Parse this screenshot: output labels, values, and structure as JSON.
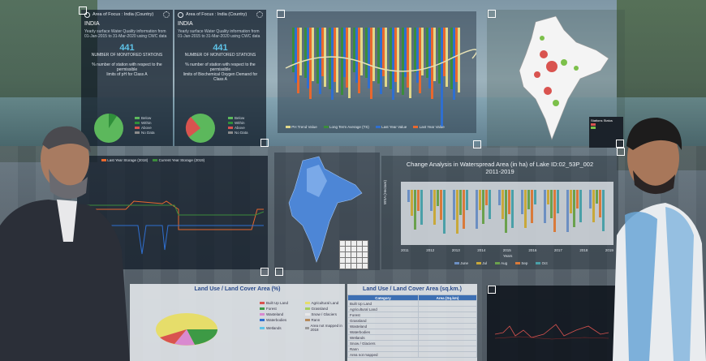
{
  "panel_left": {
    "header": "Area of Focus : India (Country)",
    "country": "INDIA",
    "summary": [
      "Yearly surface Water Quality information from",
      "01-Jan-2015 to 31-Mar-2020 using CWC data"
    ],
    "stat_value": "441",
    "stat_label": "NUMBER OF MONITORED STATIONS",
    "pie_title": [
      "% number of station with respect to the permissible",
      "limits of pH for Class A"
    ],
    "legend": [
      {
        "label": "Below",
        "color": "#5cb85c"
      },
      {
        "label": "Within",
        "color": "#2f8f3a"
      },
      {
        "label": "Above",
        "color": "#d9534f"
      },
      {
        "label": "No Data",
        "color": "#8a8a8a"
      }
    ]
  },
  "panel_mid": {
    "header": "Area of Focus : India (Country)",
    "country": "INDIA",
    "summary": [
      "Yearly surface Water Quality information from",
      "01-Jan-2015 to 31-Mar-2020 using CWC data"
    ],
    "stat_value": "441",
    "stat_label": "NUMBER OF MONITORED STATIONS",
    "pie_title": [
      "% number of station with respect to the permissible",
      "limits of Biochemical Oxygen Demand for Class A"
    ],
    "legend": [
      {
        "label": "Below",
        "color": "#5cb85c"
      },
      {
        "label": "Within",
        "color": "#2f8f3a"
      },
      {
        "label": "Above",
        "color": "#d9534f"
      },
      {
        "label": "No Data",
        "color": "#8a8a8a"
      }
    ]
  },
  "bars_panel": {
    "legend": [
      "PH Trend Value",
      "Long Term Average (TS)",
      "Last Year Value",
      "Last Year Value"
    ]
  },
  "line_panel": {
    "legend": [
      "Last Year Storage (2018)",
      "Current Year Storage (2019)"
    ]
  },
  "waterspread_panel": {
    "title": "Change Analysis in Waterspread Area (in ha) of Lake ID:02_53P_002",
    "subtitle": "2011-2019",
    "ylabel": "WSA (Hectare)",
    "xlabel": "Years",
    "years": [
      "2011",
      "2012",
      "2013",
      "2014",
      "2015",
      "2016",
      "2017",
      "2018",
      "2019"
    ],
    "legend": [
      "June",
      "Jul",
      "Aug",
      "Sep",
      "Oct"
    ]
  },
  "landuse_pie": {
    "title": "Land Use / Land Cover Area (%)",
    "legend": [
      "Built Up Land",
      "Agricultural Land",
      "Forest",
      "Grassland",
      "Wasteland",
      "Snow / Glaciers",
      "Waterbodies",
      "Rann",
      "Wetlands",
      "Area not mapped in 2018"
    ]
  },
  "landuse_table": {
    "title": "Land Use / Land Cover Area (sq.km.)",
    "headers": [
      "Category",
      "Area (Sq.km)"
    ],
    "rows": [
      [
        "Built Up Land",
        ""
      ],
      [
        "Agricultural Land",
        ""
      ],
      [
        "Forest",
        ""
      ],
      [
        "Grassland",
        ""
      ],
      [
        "Wasteland",
        ""
      ],
      [
        "Waterbodies",
        ""
      ],
      [
        "Wetlands",
        ""
      ],
      [
        "Snow / Glaciers",
        ""
      ],
      [
        "Rann",
        ""
      ],
      [
        "Area not mapped",
        ""
      ]
    ]
  },
  "india_map_legend": {
    "title": "Stations Status"
  },
  "colors": {
    "accent": "#5ec3e8",
    "panel_dark": "#0f1926",
    "above": "#d9534f",
    "below": "#5cb85c"
  }
}
